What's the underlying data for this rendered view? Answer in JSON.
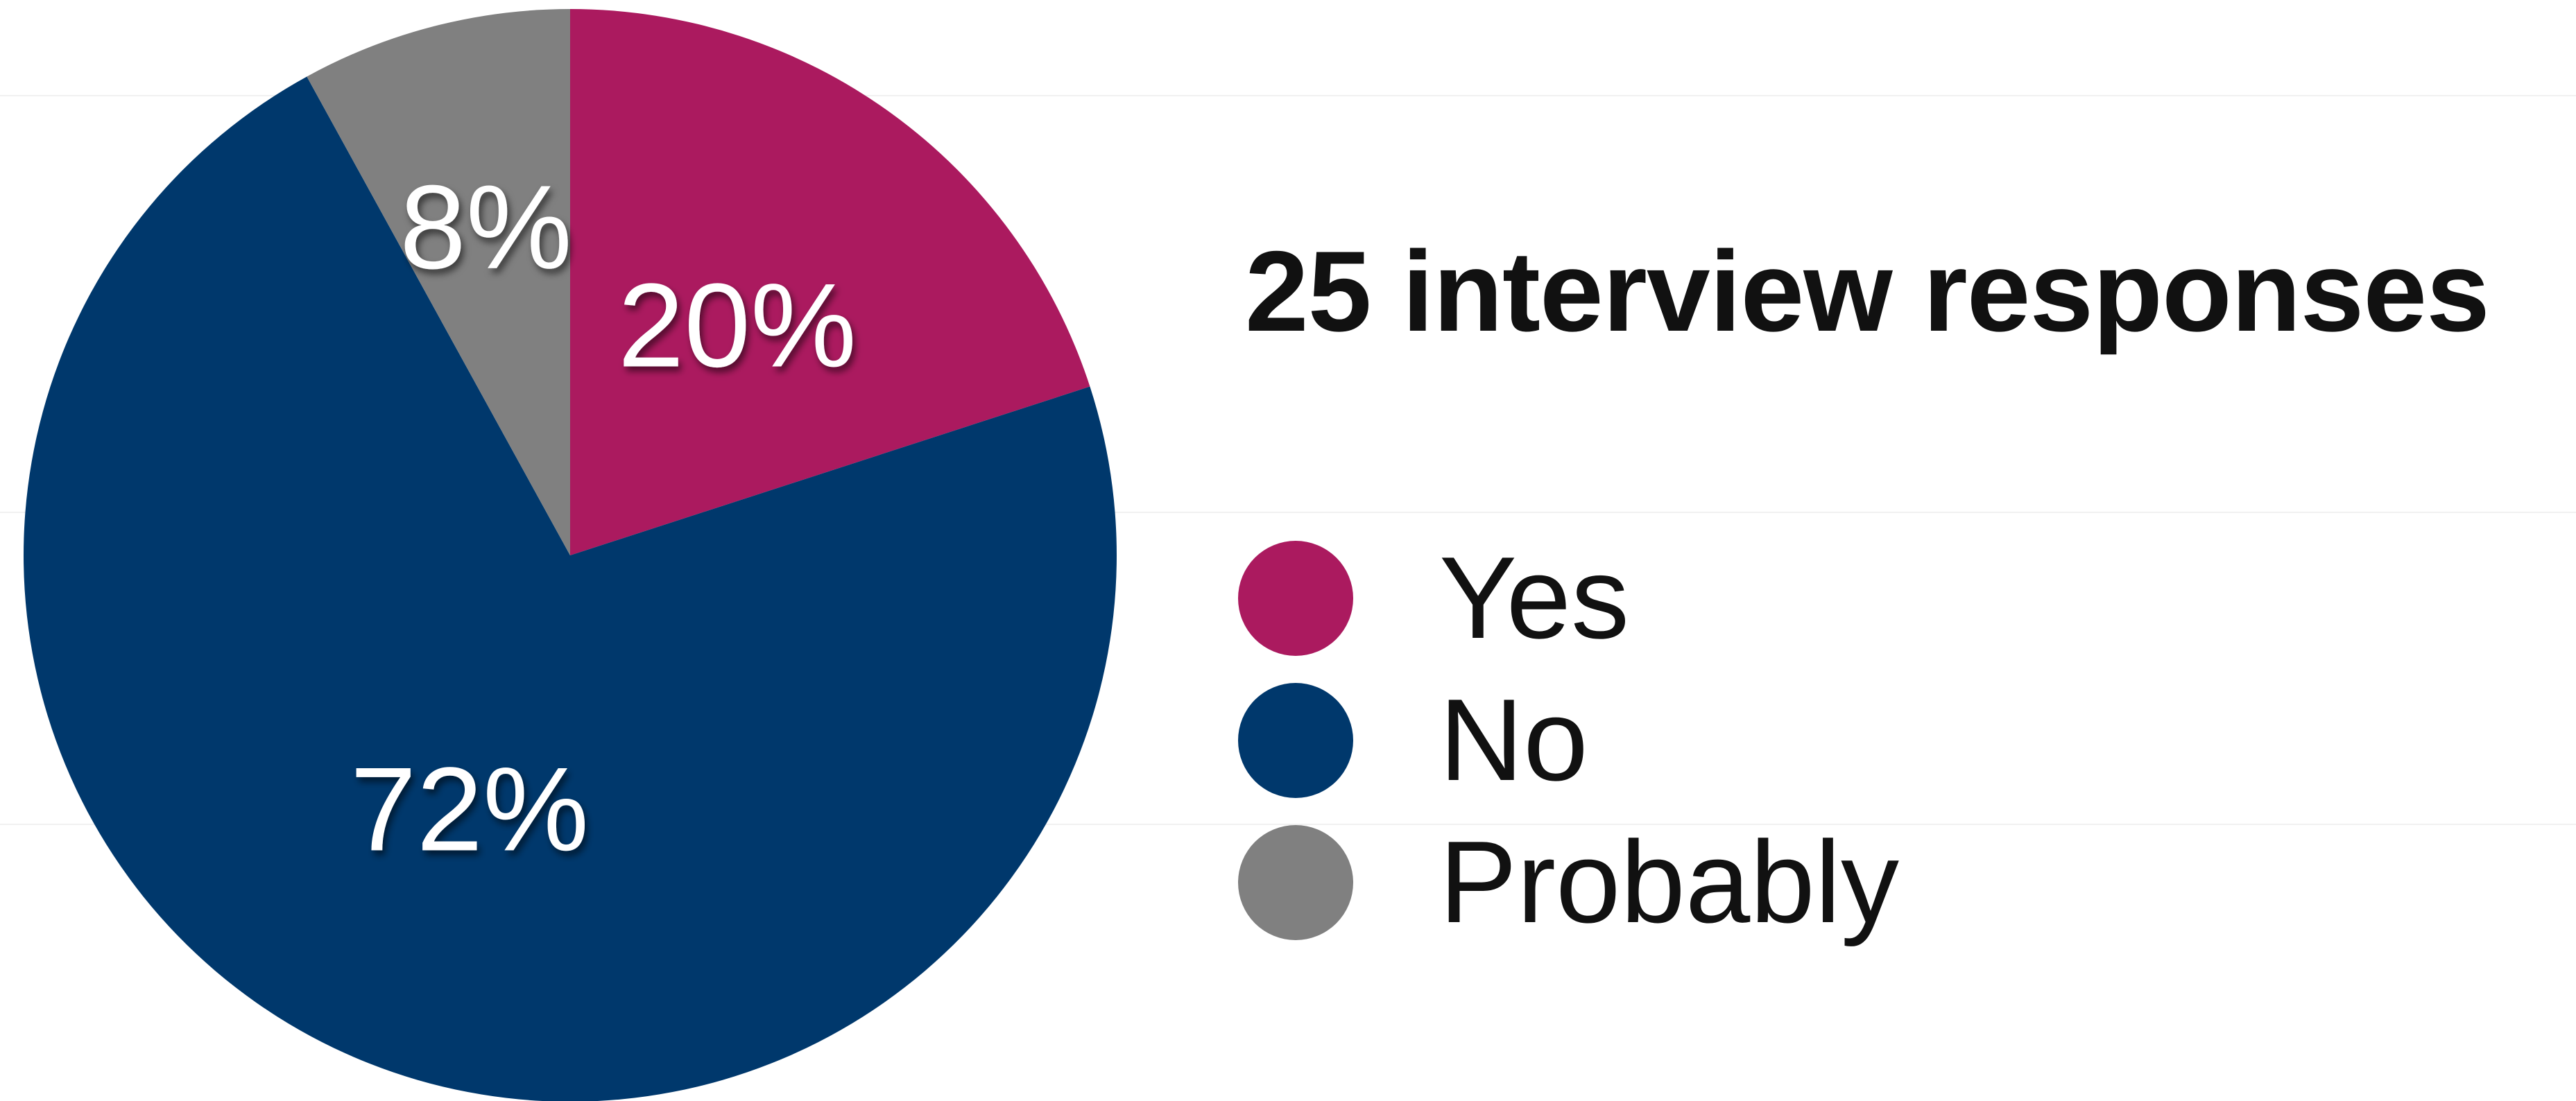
{
  "chart_data": {
    "type": "pie",
    "title": "25 interview responses",
    "categories": [
      "Yes",
      "No",
      "Probably"
    ],
    "values": [
      20,
      72,
      8
    ],
    "unit": "%",
    "value_labels": [
      "20%",
      "72%",
      "8%"
    ],
    "colors": [
      "#ab1a5f",
      "#00386c",
      "#808080"
    ],
    "start_angle_deg": 0,
    "direction": "clockwise",
    "legend": {
      "position": "right",
      "entries": [
        {
          "label": "Yes",
          "color": "#ab1a5f"
        },
        {
          "label": "No",
          "color": "#00386c"
        },
        {
          "label": "Probably",
          "color": "#808080"
        }
      ]
    },
    "grid": false
  }
}
